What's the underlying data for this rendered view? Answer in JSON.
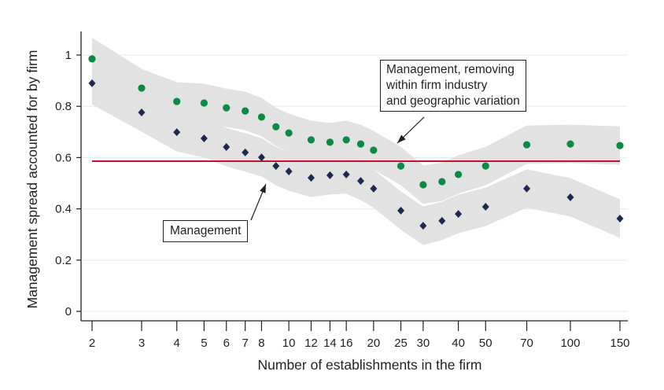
{
  "chart_data": {
    "type": "scatter",
    "xlabel": "Number of establishments in the firm",
    "ylabel": "Management spread accounted for by firm",
    "xscale": "log",
    "xlim": [
      2,
      150
    ],
    "ylim": [
      0,
      1.05
    ],
    "yticks": [
      0,
      0.2,
      0.4,
      0.6,
      0.8,
      1
    ],
    "ytick_labels": [
      "0",
      "0.2",
      "0.4",
      "0.6",
      "0.8",
      "1"
    ],
    "xticks": [
      2,
      3,
      4,
      5,
      6,
      7,
      8,
      10,
      12,
      14,
      16,
      20,
      25,
      30,
      40,
      50,
      70,
      100,
      150
    ],
    "xtick_labels": [
      "2",
      "3",
      "4",
      "5",
      "6",
      "7",
      "8",
      "10",
      "12",
      "14",
      "16",
      "20",
      "25",
      "30",
      "40",
      "50",
      "70",
      "100",
      "150"
    ],
    "grid": true,
    "x": [
      2,
      3,
      4,
      5,
      6,
      7,
      8,
      9,
      10,
      12,
      14,
      16,
      18,
      20,
      25,
      30,
      35,
      40,
      50,
      70,
      100,
      150
    ],
    "series": [
      {
        "name": "Management, removing within firm industry and geographic variation",
        "marker": "circle",
        "color": "#0a8a43",
        "values": [
          0.985,
          0.871,
          0.819,
          0.813,
          0.794,
          0.782,
          0.758,
          0.72,
          0.696,
          0.669,
          0.66,
          0.669,
          0.653,
          0.629,
          0.567,
          0.494,
          0.506,
          0.534,
          0.567,
          0.65,
          0.653,
          0.647
        ],
        "band_halfwidth": 0.075
      },
      {
        "name": "Management",
        "marker": "diamond",
        "color": "#1c2a52",
        "values": [
          0.89,
          0.776,
          0.699,
          0.675,
          0.641,
          0.62,
          0.601,
          0.567,
          0.546,
          0.521,
          0.531,
          0.534,
          0.509,
          0.479,
          0.393,
          0.334,
          0.353,
          0.38,
          0.408,
          0.479,
          0.445,
          0.362
        ],
        "band_halfwidth": 0.075
      }
    ],
    "reference_line": {
      "y": 0.586,
      "color": "#c8102e"
    },
    "band_color": "#e0e0e0",
    "annotations": [
      {
        "lines": [
          "Management, removing",
          "within firm industry",
          "and geographic variation"
        ]
      },
      {
        "lines": [
          "Management"
        ]
      }
    ]
  }
}
